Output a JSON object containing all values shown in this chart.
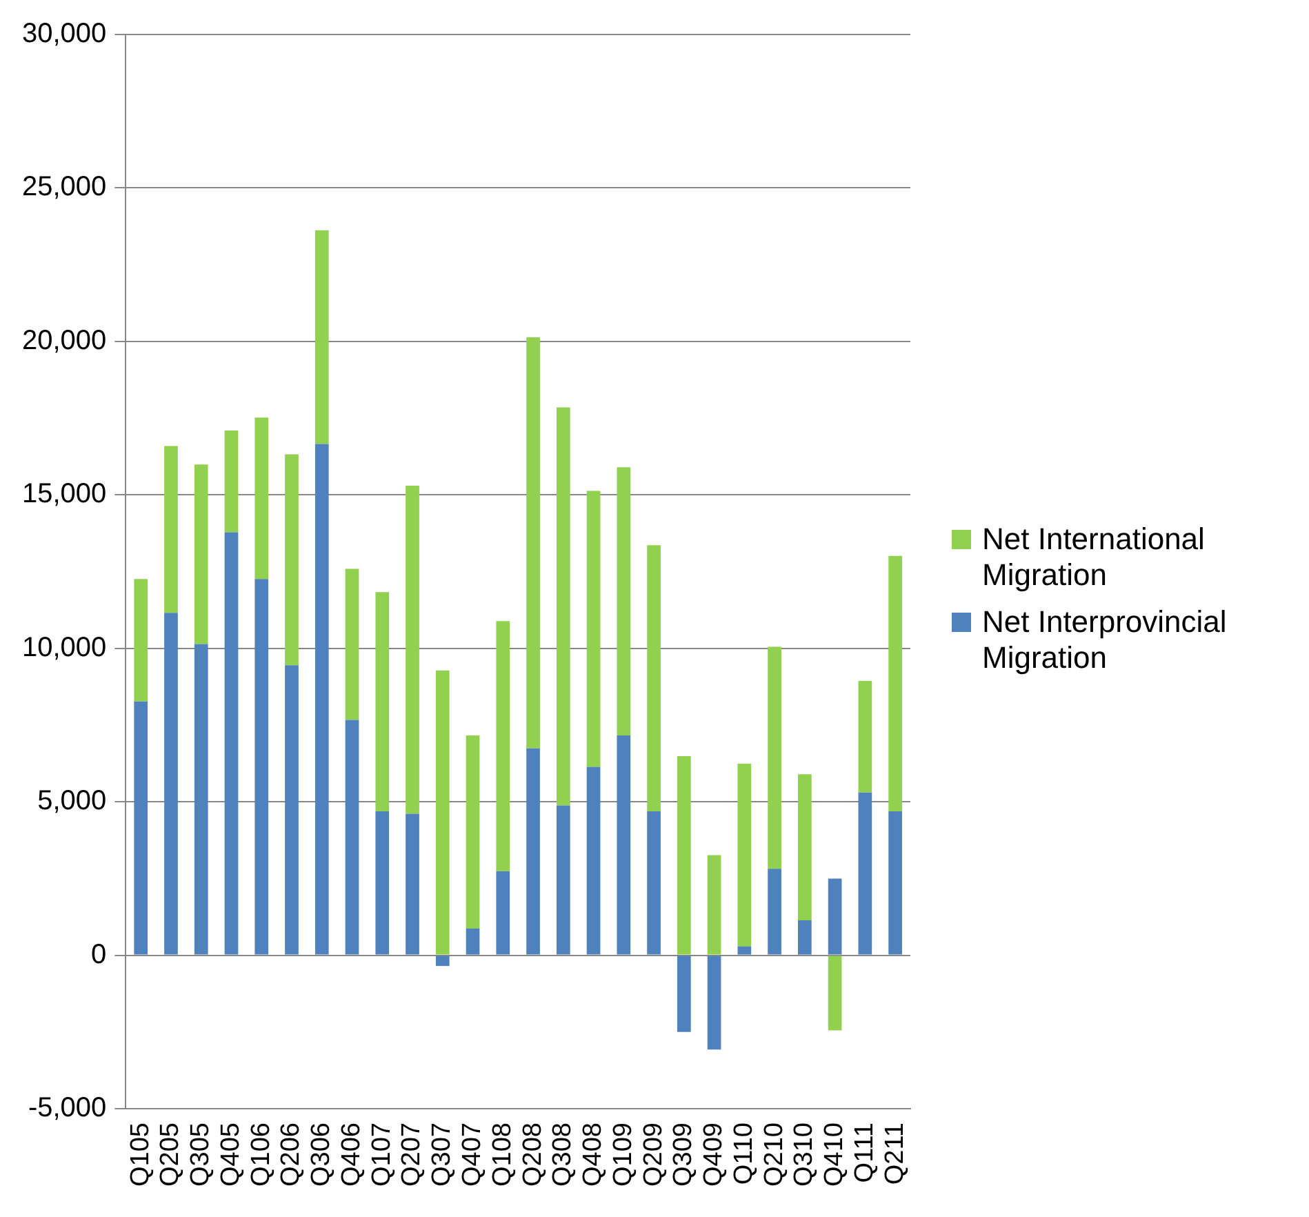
{
  "chart_data": {
    "type": "bar",
    "stacked": true,
    "categories": [
      "Q105",
      "Q205",
      "Q305",
      "Q405",
      "Q106",
      "Q206",
      "Q306",
      "Q406",
      "Q107",
      "Q207",
      "Q307",
      "Q407",
      "Q108",
      "Q208",
      "Q308",
      "Q408",
      "Q109",
      "Q209",
      "Q309",
      "Q409",
      "Q110",
      "Q210",
      "Q310",
      "Q410",
      "Q111",
      "Q211"
    ],
    "series": [
      {
        "name": "Net Interprovincial Migration",
        "color": "#4f81bd",
        "values": [
          8270,
          11160,
          10140,
          13780,
          12260,
          9450,
          16660,
          7670,
          4690,
          4610,
          -350,
          870,
          2740,
          6740,
          4880,
          6140,
          7160,
          4690,
          -2500,
          -3070,
          290,
          2820,
          1140,
          2500,
          5300,
          4690
        ]
      },
      {
        "name": "Net International Migration",
        "color": "#92d050",
        "values": [
          3990,
          5430,
          5850,
          3320,
          5260,
          6870,
          6960,
          4920,
          7140,
          10690,
          9280,
          6290,
          8150,
          13400,
          12970,
          8990,
          8740,
          8670,
          6490,
          3260,
          5950,
          7230,
          4760,
          -2450,
          3640,
          8320
        ]
      }
    ],
    "ylim": [
      -5000,
      30000
    ],
    "yticks": [
      {
        "value": -5000,
        "label": "-5,000"
      },
      0,
      {
        "value": 5000,
        "label": "5,000"
      },
      {
        "value": 10000,
        "label": "10,000"
      },
      {
        "value": 15000,
        "label": "15,000"
      },
      {
        "value": 20000,
        "label": "20,000"
      },
      {
        "value": 25000,
        "label": "25,000"
      },
      {
        "value": 30000,
        "label": "30,000"
      }
    ],
    "grid": "y",
    "legend": "right"
  }
}
